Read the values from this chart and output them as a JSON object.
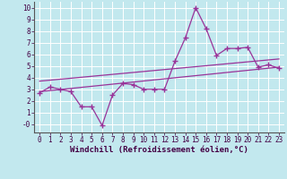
{
  "title": "",
  "xlabel": "Windchill (Refroidissement éolien,°C)",
  "ylabel": "",
  "bg_color": "#c2e8ee",
  "line_color": "#993399",
  "grid_color": "#aad8e0",
  "xlim": [
    -0.5,
    23.5
  ],
  "ylim": [
    -0.7,
    10.5
  ],
  "xtick_labels": [
    "0",
    "1",
    "2",
    "3",
    "4",
    "5",
    "6",
    "7",
    "8",
    "9",
    "10",
    "11",
    "12",
    "13",
    "14",
    "15",
    "16",
    "17",
    "18",
    "19",
    "20",
    "21",
    "22",
    "23"
  ],
  "ytick_labels": [
    "",
    "1",
    "2",
    "3",
    "4",
    "5",
    "6",
    "7",
    "8",
    "9",
    "10"
  ],
  "ytick_vals": [
    0,
    1,
    2,
    3,
    4,
    5,
    6,
    7,
    8,
    9,
    10
  ],
  "series1_x": [
    0,
    1,
    2,
    3,
    4,
    5,
    6,
    7,
    8,
    9,
    10,
    11,
    12,
    13,
    14,
    15,
    16,
    17,
    18,
    19,
    20,
    21,
    22,
    23
  ],
  "series1_y": [
    2.7,
    3.2,
    3.0,
    2.8,
    1.5,
    1.5,
    -0.1,
    2.5,
    3.5,
    3.4,
    3.0,
    3.0,
    3.0,
    5.4,
    7.4,
    10.0,
    8.2,
    5.9,
    6.5,
    6.5,
    6.6,
    4.9,
    5.1,
    4.8
  ],
  "series2_x": [
    0,
    23
  ],
  "series2_y": [
    2.8,
    4.9
  ],
  "series3_x": [
    0,
    23
  ],
  "series3_y": [
    3.7,
    5.6
  ],
  "xlabel_fontsize": 6.5,
  "tick_fontsize": 5.5
}
